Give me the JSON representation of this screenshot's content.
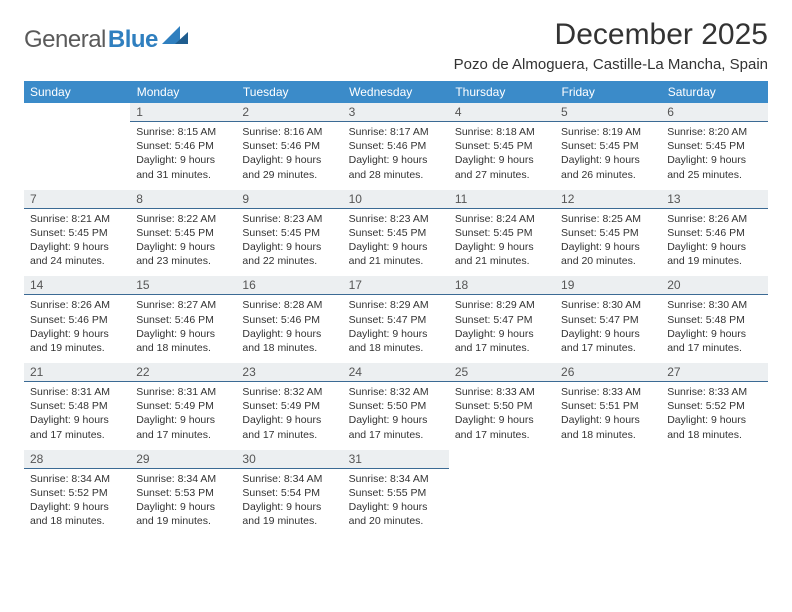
{
  "brand": {
    "part1": "General",
    "part2": "Blue"
  },
  "title": "December 2025",
  "location": "Pozo de Almoguera, Castille-La Mancha, Spain",
  "colors": {
    "header_bg": "#3b8bc9",
    "header_text": "#ffffff",
    "daynum_bg": "#eceff1",
    "daynum_border": "#3b6a94",
    "body_text": "#333333",
    "logo_gray": "#5a5a5a",
    "logo_blue": "#2f7fbf",
    "page_bg": "#ffffff"
  },
  "weekdays": [
    "Sunday",
    "Monday",
    "Tuesday",
    "Wednesday",
    "Thursday",
    "Friday",
    "Saturday"
  ],
  "first_weekday_offset": 1,
  "days": [
    {
      "n": 1,
      "sunrise": "8:15 AM",
      "sunset": "5:46 PM",
      "daylight": "9 hours and 31 minutes."
    },
    {
      "n": 2,
      "sunrise": "8:16 AM",
      "sunset": "5:46 PM",
      "daylight": "9 hours and 29 minutes."
    },
    {
      "n": 3,
      "sunrise": "8:17 AM",
      "sunset": "5:46 PM",
      "daylight": "9 hours and 28 minutes."
    },
    {
      "n": 4,
      "sunrise": "8:18 AM",
      "sunset": "5:45 PM",
      "daylight": "9 hours and 27 minutes."
    },
    {
      "n": 5,
      "sunrise": "8:19 AM",
      "sunset": "5:45 PM",
      "daylight": "9 hours and 26 minutes."
    },
    {
      "n": 6,
      "sunrise": "8:20 AM",
      "sunset": "5:45 PM",
      "daylight": "9 hours and 25 minutes."
    },
    {
      "n": 7,
      "sunrise": "8:21 AM",
      "sunset": "5:45 PM",
      "daylight": "9 hours and 24 minutes."
    },
    {
      "n": 8,
      "sunrise": "8:22 AM",
      "sunset": "5:45 PM",
      "daylight": "9 hours and 23 minutes."
    },
    {
      "n": 9,
      "sunrise": "8:23 AM",
      "sunset": "5:45 PM",
      "daylight": "9 hours and 22 minutes."
    },
    {
      "n": 10,
      "sunrise": "8:23 AM",
      "sunset": "5:45 PM",
      "daylight": "9 hours and 21 minutes."
    },
    {
      "n": 11,
      "sunrise": "8:24 AM",
      "sunset": "5:45 PM",
      "daylight": "9 hours and 21 minutes."
    },
    {
      "n": 12,
      "sunrise": "8:25 AM",
      "sunset": "5:45 PM",
      "daylight": "9 hours and 20 minutes."
    },
    {
      "n": 13,
      "sunrise": "8:26 AM",
      "sunset": "5:46 PM",
      "daylight": "9 hours and 19 minutes."
    },
    {
      "n": 14,
      "sunrise": "8:26 AM",
      "sunset": "5:46 PM",
      "daylight": "9 hours and 19 minutes."
    },
    {
      "n": 15,
      "sunrise": "8:27 AM",
      "sunset": "5:46 PM",
      "daylight": "9 hours and 18 minutes."
    },
    {
      "n": 16,
      "sunrise": "8:28 AM",
      "sunset": "5:46 PM",
      "daylight": "9 hours and 18 minutes."
    },
    {
      "n": 17,
      "sunrise": "8:29 AM",
      "sunset": "5:47 PM",
      "daylight": "9 hours and 18 minutes."
    },
    {
      "n": 18,
      "sunrise": "8:29 AM",
      "sunset": "5:47 PM",
      "daylight": "9 hours and 17 minutes."
    },
    {
      "n": 19,
      "sunrise": "8:30 AM",
      "sunset": "5:47 PM",
      "daylight": "9 hours and 17 minutes."
    },
    {
      "n": 20,
      "sunrise": "8:30 AM",
      "sunset": "5:48 PM",
      "daylight": "9 hours and 17 minutes."
    },
    {
      "n": 21,
      "sunrise": "8:31 AM",
      "sunset": "5:48 PM",
      "daylight": "9 hours and 17 minutes."
    },
    {
      "n": 22,
      "sunrise": "8:31 AM",
      "sunset": "5:49 PM",
      "daylight": "9 hours and 17 minutes."
    },
    {
      "n": 23,
      "sunrise": "8:32 AM",
      "sunset": "5:49 PM",
      "daylight": "9 hours and 17 minutes."
    },
    {
      "n": 24,
      "sunrise": "8:32 AM",
      "sunset": "5:50 PM",
      "daylight": "9 hours and 17 minutes."
    },
    {
      "n": 25,
      "sunrise": "8:33 AM",
      "sunset": "5:50 PM",
      "daylight": "9 hours and 17 minutes."
    },
    {
      "n": 26,
      "sunrise": "8:33 AM",
      "sunset": "5:51 PM",
      "daylight": "9 hours and 18 minutes."
    },
    {
      "n": 27,
      "sunrise": "8:33 AM",
      "sunset": "5:52 PM",
      "daylight": "9 hours and 18 minutes."
    },
    {
      "n": 28,
      "sunrise": "8:34 AM",
      "sunset": "5:52 PM",
      "daylight": "9 hours and 18 minutes."
    },
    {
      "n": 29,
      "sunrise": "8:34 AM",
      "sunset": "5:53 PM",
      "daylight": "9 hours and 19 minutes."
    },
    {
      "n": 30,
      "sunrise": "8:34 AM",
      "sunset": "5:54 PM",
      "daylight": "9 hours and 19 minutes."
    },
    {
      "n": 31,
      "sunrise": "8:34 AM",
      "sunset": "5:55 PM",
      "daylight": "9 hours and 20 minutes."
    }
  ],
  "labels": {
    "sunrise": "Sunrise:",
    "sunset": "Sunset:",
    "daylight": "Daylight:"
  }
}
